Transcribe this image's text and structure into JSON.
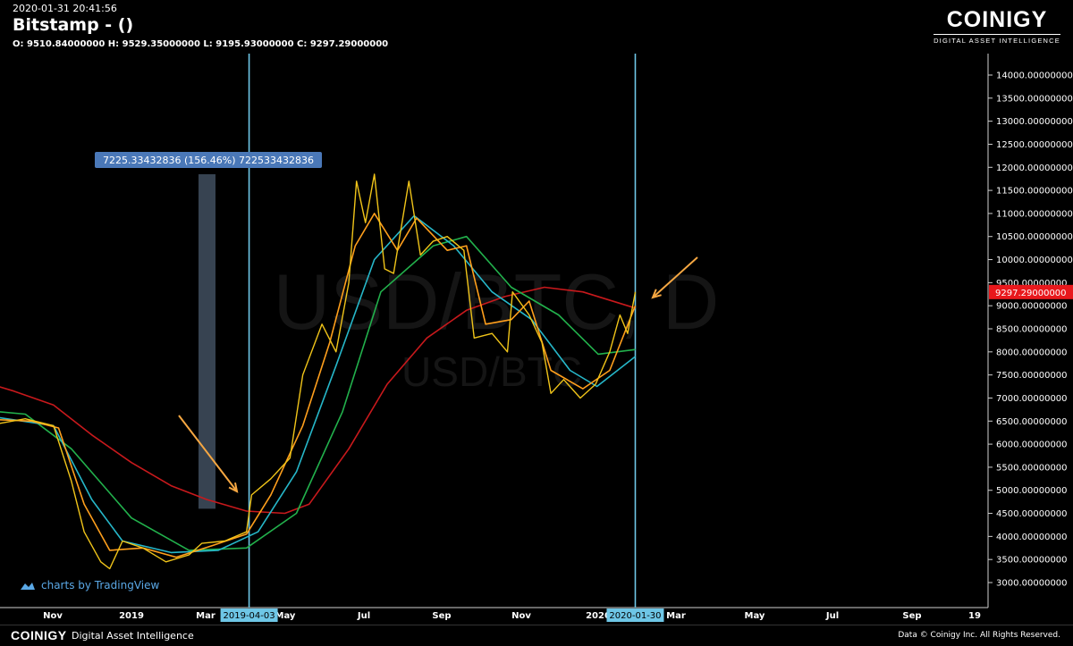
{
  "header": {
    "timestamp": "2020-01-31 20:41:56",
    "title": "Bitstamp -  ()",
    "ohlc": "O: 9510.84000000 H: 9529.35000000 L: 9195.93000000 C: 9297.29000000"
  },
  "logo": {
    "name": "COINIGY",
    "tagline": "DIGITAL ASSET INTELLIGENCE"
  },
  "watermark": {
    "main": "USD/BTC, D",
    "sub": "USD/BTC"
  },
  "tradingview_label": "charts by TradingView",
  "footer": {
    "brand": "COINIGY",
    "sub": "Digital Asset Intelligence",
    "copyright": "Data © Coinigy Inc.  All Rights Reserved."
  },
  "colors": {
    "background": "#000000",
    "price": "#f0c419",
    "ma_fast": "#ff9f1c",
    "ma_mid": "#26b7c9",
    "ma_slow": "#22b14c",
    "ma_long": "#c8191c",
    "vline": "#6ec6e6",
    "measure_box": "#3d4a5a",
    "measure_label_bg": "#4a78b8",
    "arrow": "#f5a742",
    "price_tag": "#e8181c"
  },
  "chart_data": {
    "type": "line",
    "title": "Bitstamp -  ()",
    "ylim": [
      2700,
      14600
    ],
    "y_ticks": [
      "14000.00000000",
      "13500.00000000",
      "13000.00000000",
      "12500.00000000",
      "12000.00000000",
      "11500.00000000",
      "11000.00000000",
      "10500.00000000",
      "10000.00000000",
      "9500.00000000",
      "9000.00000000",
      "8500.00000000",
      "8000.00000000",
      "7500.00000000",
      "7000.00000000",
      "6500.00000000",
      "6000.00000000",
      "5500.00000000",
      "5000.00000000",
      "4500.00000000",
      "4000.00000000",
      "3500.00000000",
      "3000.00000000"
    ],
    "x_labels": [
      "Nov",
      "2019",
      "Mar",
      "May",
      "Jul",
      "Sep",
      "Nov",
      "2020",
      "Mar",
      "May",
      "Jul",
      "Sep",
      "19"
    ],
    "x_highlights": [
      "2019-04-03",
      "2020-01-30"
    ],
    "last_price_label": "9297.29000000",
    "measure": {
      "label": "7225.33432836 (156.46%) 722533432836",
      "from": 4600,
      "to": 11850
    },
    "series": [
      {
        "key": "price",
        "values": [
          {
            "d": "2018-09-01",
            "v": 6600
          },
          {
            "d": "2018-09-20",
            "v": 6450
          },
          {
            "d": "2018-10-10",
            "v": 6550
          },
          {
            "d": "2018-11-01",
            "v": 6400
          },
          {
            "d": "2018-11-15",
            "v": 5200
          },
          {
            "d": "2018-11-25",
            "v": 4100
          },
          {
            "d": "2018-12-08",
            "v": 3450
          },
          {
            "d": "2018-12-15",
            "v": 3300
          },
          {
            "d": "2018-12-25",
            "v": 3900
          },
          {
            "d": "2019-01-10",
            "v": 3750
          },
          {
            "d": "2019-01-28",
            "v": 3450
          },
          {
            "d": "2019-02-15",
            "v": 3600
          },
          {
            "d": "2019-02-25",
            "v": 3850
          },
          {
            "d": "2019-03-15",
            "v": 3900
          },
          {
            "d": "2019-04-01",
            "v": 4100
          },
          {
            "d": "2019-04-05",
            "v": 4900
          },
          {
            "d": "2019-04-20",
            "v": 5250
          },
          {
            "d": "2019-05-05",
            "v": 5700
          },
          {
            "d": "2019-05-15",
            "v": 7500
          },
          {
            "d": "2019-05-30",
            "v": 8600
          },
          {
            "d": "2019-06-10",
            "v": 8000
          },
          {
            "d": "2019-06-20",
            "v": 9500
          },
          {
            "d": "2019-06-26",
            "v": 11700
          },
          {
            "d": "2019-07-03",
            "v": 10800
          },
          {
            "d": "2019-07-10",
            "v": 11850
          },
          {
            "d": "2019-07-18",
            "v": 9800
          },
          {
            "d": "2019-07-25",
            "v": 9700
          },
          {
            "d": "2019-08-06",
            "v": 11700
          },
          {
            "d": "2019-08-15",
            "v": 10100
          },
          {
            "d": "2019-08-25",
            "v": 10400
          },
          {
            "d": "2019-09-05",
            "v": 10500
          },
          {
            "d": "2019-09-18",
            "v": 10200
          },
          {
            "d": "2019-09-26",
            "v": 8300
          },
          {
            "d": "2019-10-10",
            "v": 8400
          },
          {
            "d": "2019-10-22",
            "v": 8000
          },
          {
            "d": "2019-10-26",
            "v": 9300
          },
          {
            "d": "2019-11-08",
            "v": 8800
          },
          {
            "d": "2019-11-18",
            "v": 8200
          },
          {
            "d": "2019-11-25",
            "v": 7100
          },
          {
            "d": "2019-12-05",
            "v": 7400
          },
          {
            "d": "2019-12-18",
            "v": 7000
          },
          {
            "d": "2019-12-30",
            "v": 7300
          },
          {
            "d": "2020-01-10",
            "v": 8000
          },
          {
            "d": "2020-01-18",
            "v": 8800
          },
          {
            "d": "2020-01-24",
            "v": 8400
          },
          {
            "d": "2020-01-30",
            "v": 9300
          }
        ]
      },
      {
        "key": "ma_fast",
        "values": [
          {
            "d": "2018-09-01",
            "v": 6550
          },
          {
            "d": "2018-10-15",
            "v": 6500
          },
          {
            "d": "2018-11-05",
            "v": 6350
          },
          {
            "d": "2018-11-25",
            "v": 4700
          },
          {
            "d": "2018-12-15",
            "v": 3700
          },
          {
            "d": "2019-01-10",
            "v": 3750
          },
          {
            "d": "2019-02-05",
            "v": 3550
          },
          {
            "d": "2019-03-05",
            "v": 3800
          },
          {
            "d": "2019-04-01",
            "v": 4050
          },
          {
            "d": "2019-04-20",
            "v": 4900
          },
          {
            "d": "2019-05-15",
            "v": 6400
          },
          {
            "d": "2019-06-05",
            "v": 8200
          },
          {
            "d": "2019-06-25",
            "v": 10300
          },
          {
            "d": "2019-07-10",
            "v": 11000
          },
          {
            "d": "2019-07-28",
            "v": 10200
          },
          {
            "d": "2019-08-12",
            "v": 10900
          },
          {
            "d": "2019-09-05",
            "v": 10200
          },
          {
            "d": "2019-09-20",
            "v": 10300
          },
          {
            "d": "2019-10-05",
            "v": 8600
          },
          {
            "d": "2019-10-25",
            "v": 8700
          },
          {
            "d": "2019-11-08",
            "v": 9100
          },
          {
            "d": "2019-11-25",
            "v": 7600
          },
          {
            "d": "2019-12-20",
            "v": 7200
          },
          {
            "d": "2020-01-10",
            "v": 7600
          },
          {
            "d": "2020-01-30",
            "v": 9000
          }
        ]
      },
      {
        "key": "ma_mid",
        "values": [
          {
            "d": "2018-09-01",
            "v": 6650
          },
          {
            "d": "2018-11-01",
            "v": 6400
          },
          {
            "d": "2018-12-01",
            "v": 4800
          },
          {
            "d": "2018-12-25",
            "v": 3900
          },
          {
            "d": "2019-02-01",
            "v": 3650
          },
          {
            "d": "2019-03-10",
            "v": 3700
          },
          {
            "d": "2019-04-10",
            "v": 4100
          },
          {
            "d": "2019-05-10",
            "v": 5400
          },
          {
            "d": "2019-06-10",
            "v": 7700
          },
          {
            "d": "2019-07-10",
            "v": 10000
          },
          {
            "d": "2019-08-10",
            "v": 10950
          },
          {
            "d": "2019-09-10",
            "v": 10300
          },
          {
            "d": "2019-10-10",
            "v": 9300
          },
          {
            "d": "2019-11-10",
            "v": 8700
          },
          {
            "d": "2019-12-10",
            "v": 7600
          },
          {
            "d": "2019-12-31",
            "v": 7250
          },
          {
            "d": "2020-01-30",
            "v": 7900
          }
        ]
      },
      {
        "key": "ma_slow",
        "values": [
          {
            "d": "2018-09-01",
            "v": 6750
          },
          {
            "d": "2018-10-10",
            "v": 6650
          },
          {
            "d": "2018-11-15",
            "v": 5900
          },
          {
            "d": "2019-01-01",
            "v": 4400
          },
          {
            "d": "2019-02-15",
            "v": 3700
          },
          {
            "d": "2019-04-01",
            "v": 3750
          },
          {
            "d": "2019-05-10",
            "v": 4500
          },
          {
            "d": "2019-06-15",
            "v": 6700
          },
          {
            "d": "2019-07-15",
            "v": 9300
          },
          {
            "d": "2019-08-25",
            "v": 10300
          },
          {
            "d": "2019-09-20",
            "v": 10500
          },
          {
            "d": "2019-10-25",
            "v": 9400
          },
          {
            "d": "2019-12-01",
            "v": 8800
          },
          {
            "d": "2020-01-01",
            "v": 7950
          },
          {
            "d": "2020-01-30",
            "v": 8050
          }
        ]
      },
      {
        "key": "ma_long",
        "values": [
          {
            "d": "2018-09-01",
            "v": 7400
          },
          {
            "d": "2018-10-01",
            "v": 7150
          },
          {
            "d": "2018-11-01",
            "v": 6850
          },
          {
            "d": "2018-12-01",
            "v": 6200
          },
          {
            "d": "2019-01-01",
            "v": 5600
          },
          {
            "d": "2019-02-01",
            "v": 5100
          },
          {
            "d": "2019-03-01",
            "v": 4800
          },
          {
            "d": "2019-04-01",
            "v": 4550
          },
          {
            "d": "2019-05-01",
            "v": 4500
          },
          {
            "d": "2019-05-20",
            "v": 4700
          },
          {
            "d": "2019-06-20",
            "v": 5900
          },
          {
            "d": "2019-07-20",
            "v": 7300
          },
          {
            "d": "2019-08-20",
            "v": 8300
          },
          {
            "d": "2019-09-20",
            "v": 8900
          },
          {
            "d": "2019-10-20",
            "v": 9200
          },
          {
            "d": "2019-11-20",
            "v": 9400
          },
          {
            "d": "2019-12-20",
            "v": 9300
          },
          {
            "d": "2020-01-30",
            "v": 8950
          }
        ]
      }
    ]
  }
}
